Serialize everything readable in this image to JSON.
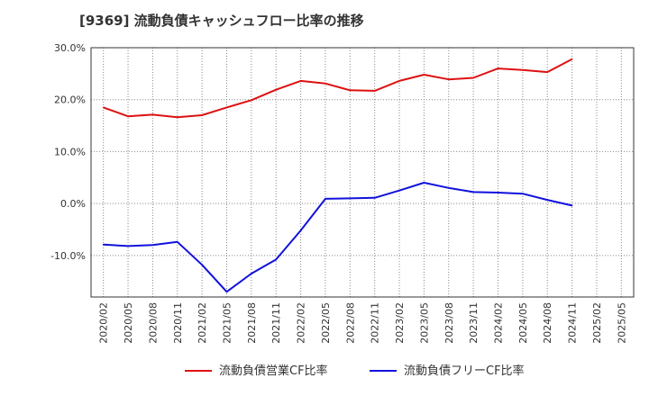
{
  "chart_data": {
    "type": "line",
    "title": "[9369]  流動負債キャッシュフロー比率の推移",
    "x": [
      "2020/02",
      "2020/05",
      "2020/08",
      "2020/11",
      "2021/02",
      "2021/05",
      "2021/08",
      "2021/11",
      "2022/02",
      "2022/05",
      "2022/08",
      "2022/11",
      "2023/02",
      "2023/05",
      "2023/08",
      "2023/11",
      "2024/02",
      "2024/05",
      "2024/08",
      "2024/11",
      "2025/02",
      "2025/05"
    ],
    "series": [
      {
        "name": "流動負債営業CF比率",
        "color": "#dd1111",
        "values": [
          18.5,
          16.8,
          17.1,
          16.6,
          17.0,
          18.5,
          19.9,
          21.9,
          23.6,
          23.1,
          21.8,
          21.7,
          23.6,
          24.8,
          23.9,
          24.2,
          26.0,
          25.7,
          25.3,
          27.8,
          null,
          null
        ]
      },
      {
        "name": "流動負債フリーCF比率",
        "color": "#1111dd",
        "values": [
          -7.9,
          -8.2,
          -8.0,
          -7.4,
          -11.8,
          -17.0,
          -13.5,
          -10.8,
          -5.2,
          0.9,
          1.0,
          1.1,
          2.5,
          4.0,
          3.0,
          2.2,
          2.1,
          1.9,
          0.7,
          -0.4,
          null,
          null
        ]
      }
    ],
    "yticks": [
      -10,
      0,
      10,
      20,
      30
    ],
    "ytick_labels": [
      "-10.0%",
      "0.0%",
      "10.0%",
      "20.0%",
      "30.0%"
    ],
    "ylim": [
      -18,
      30
    ],
    "grid": true,
    "legend": "bottom"
  }
}
